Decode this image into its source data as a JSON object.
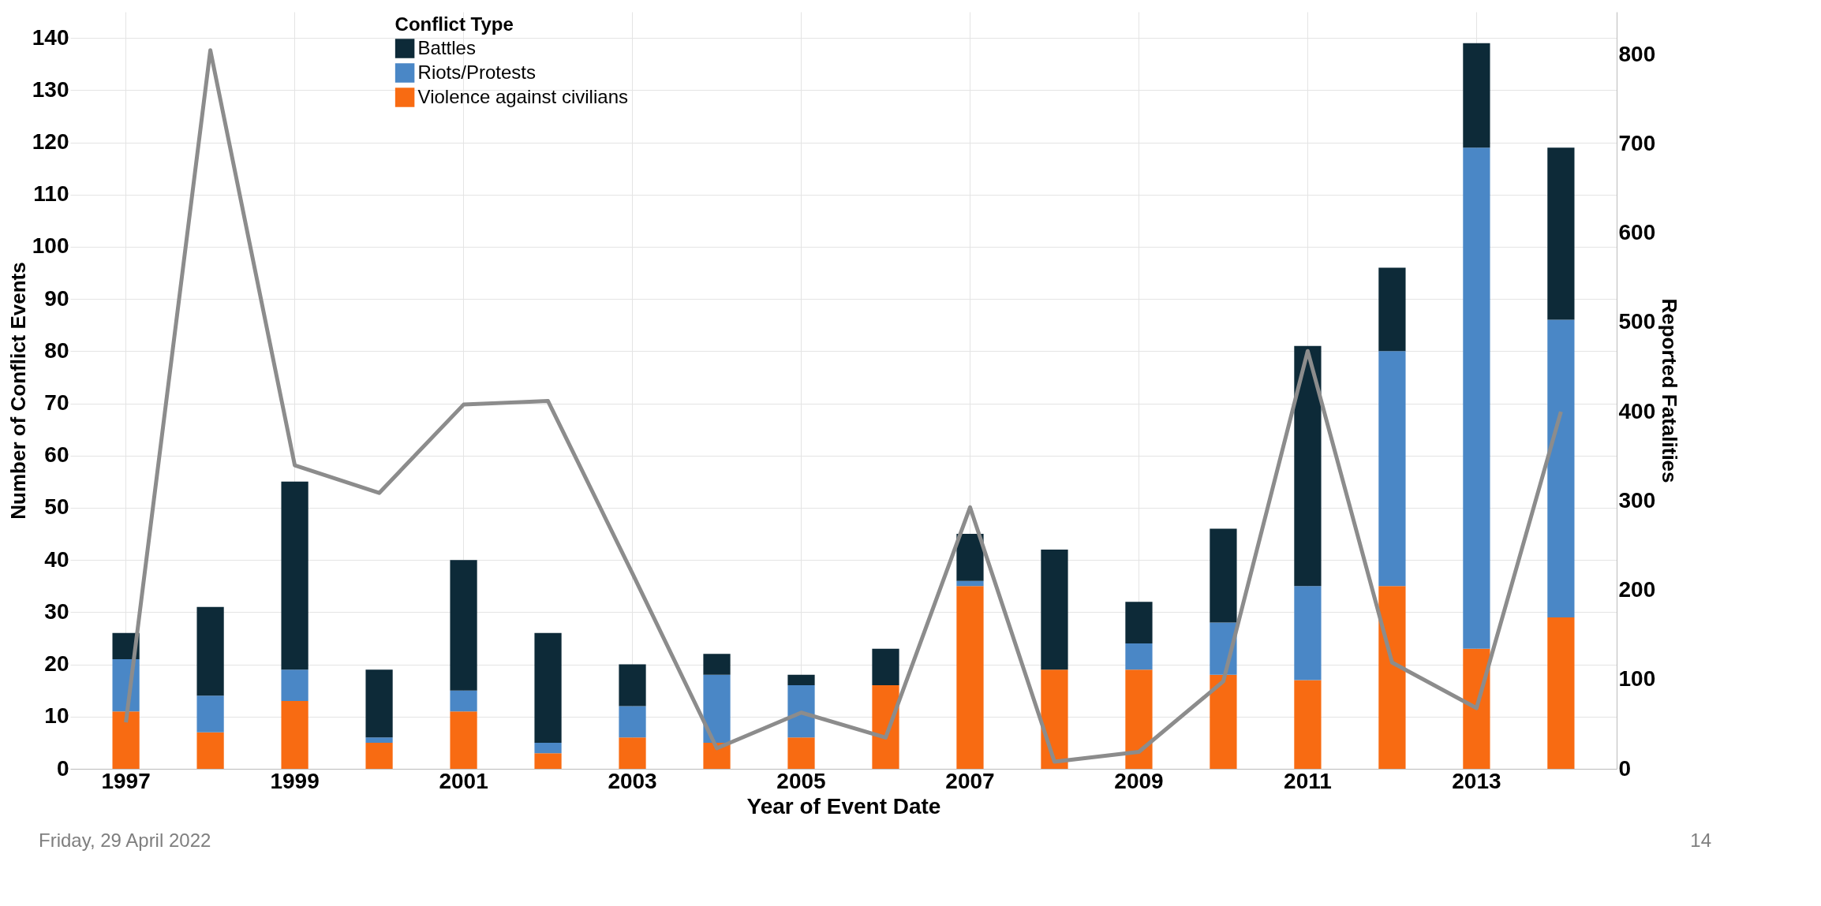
{
  "chart_data": {
    "type": "bar",
    "stacked": true,
    "xlabel": "Year of Event Date",
    "ylabel": "Number of Conflict Events",
    "y2label": "Reported Fatalities",
    "legend_title": "Conflict Type",
    "categories": [
      "1997",
      null,
      "1999",
      null,
      "2001",
      null,
      "2003",
      null,
      "2005",
      null,
      "2007",
      null,
      "2009",
      null,
      "2011",
      null,
      "2013",
      null
    ],
    "series": [
      {
        "name": "Violence against civilians",
        "color": "#f86b12",
        "values": [
          11,
          7,
          13,
          5,
          11,
          3,
          6,
          5,
          6,
          16,
          35,
          19,
          19,
          18,
          17,
          35,
          23,
          29
        ]
      },
      {
        "name": "Riots/Protests",
        "color": "#4a87c6",
        "values": [
          10,
          7,
          6,
          1,
          4,
          2,
          6,
          13,
          10,
          0,
          1,
          0,
          5,
          10,
          18,
          45,
          96,
          57
        ]
      },
      {
        "name": "Battles",
        "color": "#0d2a38",
        "values": [
          5,
          17,
          36,
          13,
          25,
          21,
          8,
          4,
          2,
          7,
          9,
          23,
          8,
          18,
          46,
          16,
          20,
          33
        ]
      },
      {
        "type": "line",
        "axis": "y2",
        "color": "#8c8c8c",
        "values": [
          52,
          805,
          340,
          309,
          408,
          412,
          219,
          23,
          63,
          35,
          293,
          8,
          19,
          98,
          468,
          119,
          68,
          400
        ]
      }
    ],
    "ylim": [
      0,
      145
    ],
    "yticks": [
      0,
      10,
      20,
      30,
      40,
      50,
      60,
      70,
      80,
      90,
      100,
      110,
      120,
      130,
      140
    ],
    "y2lim": [
      0,
      848
    ],
    "y2ticks": [
      0,
      100,
      200,
      300,
      400,
      500,
      600,
      700,
      800
    ],
    "grid": true,
    "legend": "top left",
    "marker": "none",
    "line_style": "solid",
    "annotations": [
      "Friday, 29 April 2022",
      "14"
    ]
  }
}
